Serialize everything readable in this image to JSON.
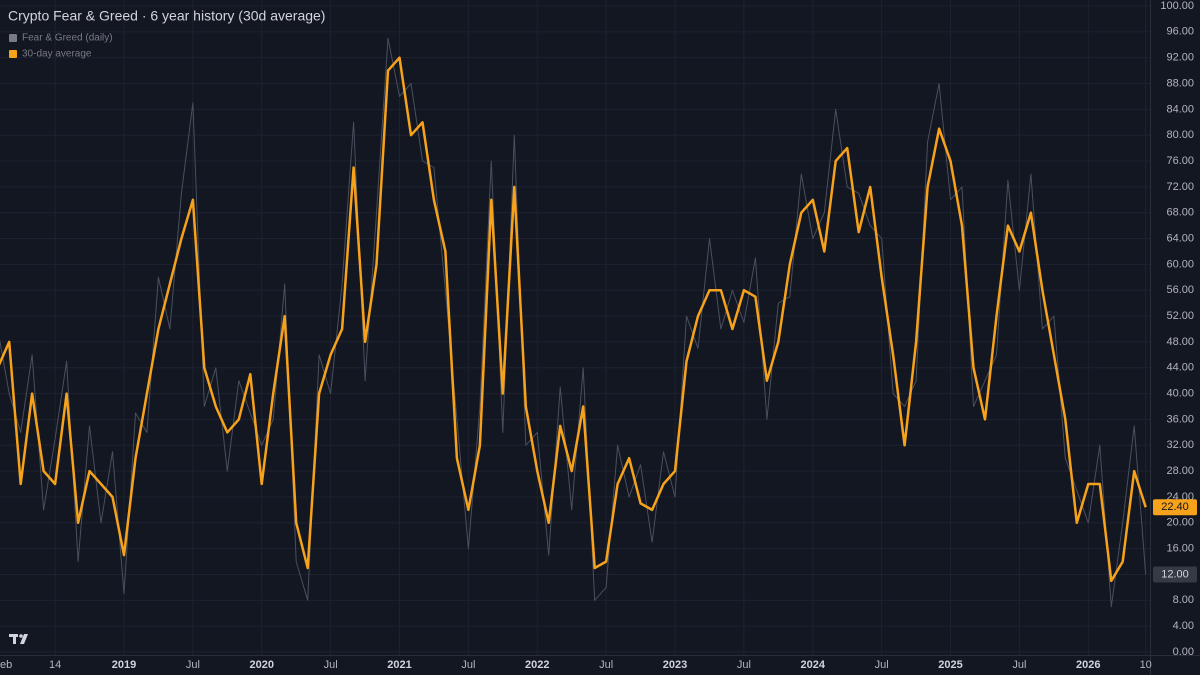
{
  "chart_data": {
    "type": "line",
    "title": "Crypto Fear & Greed · 6 year history (30d average)",
    "categories": [
      "eb",
      null,
      null,
      null,
      null,
      "14",
      null,
      null,
      null,
      null,
      null,
      "2019",
      null,
      null,
      null,
      null,
      null,
      "Jul",
      null,
      null,
      null,
      null,
      null,
      "2020",
      null,
      null,
      null,
      null,
      null,
      "Jul",
      null,
      null,
      null,
      null,
      null,
      "2021",
      null,
      null,
      null,
      null,
      null,
      "Jul",
      null,
      null,
      null,
      null,
      null,
      "2022",
      null,
      null,
      null,
      null,
      null,
      "Jul",
      null,
      null,
      null,
      null,
      null,
      "2023",
      null,
      null,
      null,
      null,
      null,
      "Jul",
      null,
      null,
      null,
      null,
      null,
      "2024",
      null,
      null,
      null,
      null,
      null,
      "Jul",
      null,
      null,
      null,
      null,
      null,
      "2025",
      null,
      null,
      null,
      null,
      null,
      "Jul",
      null,
      null,
      null,
      null,
      null,
      "2026",
      null,
      null,
      null,
      null,
      "10"
    ],
    "bold_categories": [
      "2019",
      "2020",
      "2021",
      "2022",
      "2023",
      "2024",
      "2025",
      "2026"
    ],
    "series": [
      {
        "name": "Fear & Greed (daily)",
        "color": "#4a4f5e",
        "values": [
          50,
          40,
          34,
          46,
          22,
          33,
          45,
          14,
          35,
          20,
          31,
          9,
          37,
          34,
          58,
          50,
          71,
          85,
          38,
          44,
          28,
          42,
          37,
          32,
          36,
          57,
          14,
          8,
          46,
          40,
          57,
          82,
          42,
          68,
          95,
          86,
          88,
          76,
          75,
          56,
          36,
          16,
          38,
          76,
          34,
          80,
          32,
          34,
          15,
          41,
          22,
          44,
          8,
          10,
          32,
          24,
          29,
          17,
          31,
          24,
          52,
          47,
          64,
          50,
          56,
          51,
          61,
          36,
          54,
          55,
          74,
          64,
          68,
          84,
          72,
          71,
          66,
          64,
          40,
          38,
          42,
          79,
          88,
          70,
          72,
          38,
          42,
          46,
          73,
          56,
          74,
          50,
          52,
          30,
          25,
          20,
          32,
          7,
          20,
          35,
          12
        ],
        "value_labels": [
          null,
          null,
          null,
          null,
          null,
          null,
          null,
          null,
          null,
          null,
          null,
          null,
          null,
          null,
          null,
          null,
          null,
          null,
          null,
          null,
          null,
          null,
          null,
          null,
          null,
          null,
          null,
          null,
          null,
          null,
          null,
          null,
          null,
          null,
          null,
          null,
          null,
          null,
          null,
          null,
          null,
          null,
          null,
          null,
          null,
          null,
          null,
          null,
          null,
          null,
          null,
          null,
          null,
          null,
          null,
          null,
          null,
          null,
          null,
          null,
          null,
          null,
          null,
          null,
          null,
          null,
          null,
          null,
          null,
          null,
          null,
          null,
          null,
          null,
          null,
          null,
          null,
          null,
          null,
          null,
          null,
          null,
          null,
          null,
          null,
          null,
          null,
          null,
          null,
          null,
          null,
          null,
          null,
          null,
          null,
          null,
          null,
          null,
          null,
          null,
          "12.00"
        ]
      },
      {
        "name": "30-day average",
        "color": "#f7a21b",
        "values": [
          44,
          48,
          26,
          40,
          28,
          26,
          40,
          20,
          28,
          26,
          24,
          15,
          30,
          40,
          50,
          57,
          64,
          70,
          44,
          38,
          34,
          36,
          43,
          26,
          40,
          52,
          20,
          13,
          40,
          46,
          50,
          75,
          48,
          60,
          90,
          92,
          80,
          82,
          70,
          62,
          30,
          22,
          32,
          70,
          40,
          72,
          38,
          28,
          20,
          35,
          28,
          38,
          13,
          14,
          26,
          30,
          23,
          22,
          26,
          28,
          45,
          52,
          56,
          56,
          50,
          56,
          55,
          42,
          48,
          60,
          68,
          70,
          62,
          76,
          78,
          65,
          72,
          58,
          46,
          32,
          48,
          72,
          81,
          76,
          66,
          44,
          36,
          52,
          66,
          62,
          68,
          56,
          46,
          36,
          20,
          26,
          26,
          11,
          14,
          28,
          22.4
        ],
        "value_labels": [
          null,
          null,
          null,
          null,
          null,
          null,
          null,
          null,
          null,
          null,
          null,
          null,
          null,
          null,
          null,
          null,
          null,
          null,
          null,
          null,
          null,
          null,
          null,
          null,
          null,
          null,
          null,
          null,
          null,
          null,
          null,
          null,
          null,
          null,
          null,
          null,
          null,
          null,
          null,
          null,
          null,
          null,
          null,
          null,
          null,
          null,
          null,
          null,
          null,
          null,
          null,
          null,
          null,
          null,
          null,
          null,
          null,
          null,
          null,
          null,
          null,
          null,
          null,
          null,
          null,
          null,
          null,
          null,
          null,
          null,
          null,
          null,
          null,
          null,
          null,
          null,
          null,
          null,
          null,
          null,
          null,
          null,
          null,
          null,
          null,
          null,
          null,
          null,
          null,
          null,
          null,
          null,
          null,
          null,
          null,
          null,
          null,
          null,
          null,
          null,
          "22.40"
        ]
      }
    ],
    "ylim": [
      0,
      100
    ],
    "yticks": [
      {
        "value": 0,
        "label": "0.00"
      },
      {
        "value": 4,
        "label": "4.00"
      },
      {
        "value": 8,
        "label": "8.00"
      },
      {
        "value": 12,
        "label": "12.00"
      },
      {
        "value": 16,
        "label": "16.00"
      },
      {
        "value": 20,
        "label": "20.00"
      },
      {
        "value": 24,
        "label": "24.00"
      },
      {
        "value": 28,
        "label": "28.00"
      },
      {
        "value": 32,
        "label": "32.00"
      },
      {
        "value": 36,
        "label": "36.00"
      },
      {
        "value": 40,
        "label": "40.00"
      },
      {
        "value": 44,
        "label": "44.00"
      },
      {
        "value": 48,
        "label": "48.00"
      },
      {
        "value": 52,
        "label": "52.00"
      },
      {
        "value": 56,
        "label": "56.00"
      },
      {
        "value": 60,
        "label": "60.00"
      },
      {
        "value": 64,
        "label": "64.00"
      },
      {
        "value": 68,
        "label": "68.00"
      },
      {
        "value": 72,
        "label": "72.00"
      },
      {
        "value": 76,
        "label": "76.00"
      },
      {
        "value": 80,
        "label": "80.00"
      },
      {
        "value": 84,
        "label": "84.00"
      },
      {
        "value": 88,
        "label": "88.00"
      },
      {
        "value": 92,
        "label": "92.00"
      },
      {
        "value": 96,
        "label": "96.00"
      },
      {
        "value": 100,
        "label": "100.00"
      }
    ],
    "grid": true,
    "legend": "top-left"
  }
}
